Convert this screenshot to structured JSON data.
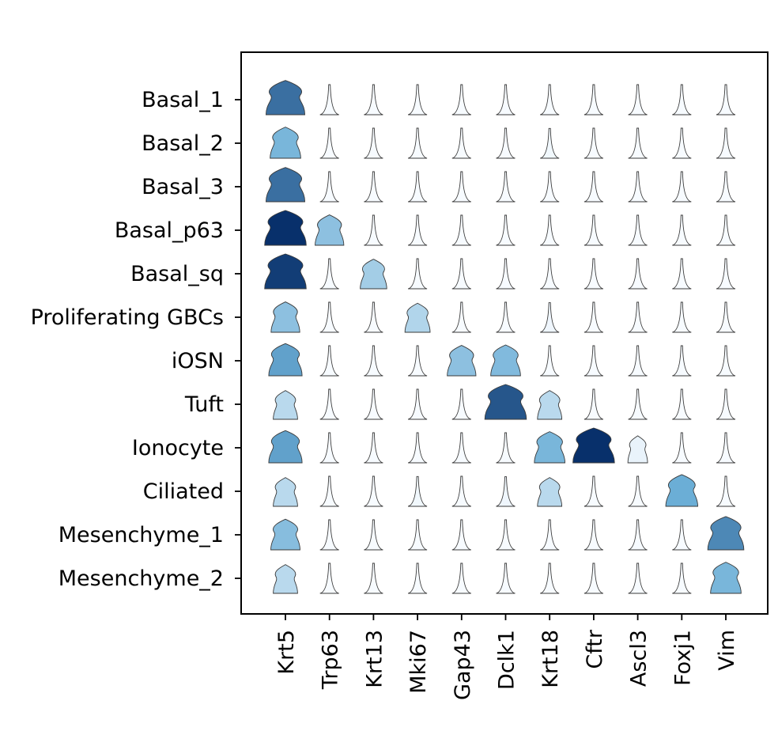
{
  "chart_data": {
    "type": "violin",
    "title": "",
    "xlabel": "",
    "ylabel": "",
    "genes": [
      "Krt5",
      "Trp63",
      "Krt13",
      "Mki67",
      "Gap43",
      "Dclk1",
      "Krt18",
      "Cftr",
      "Ascl3",
      "Foxj1",
      "Vim"
    ],
    "cell_types": [
      "Basal_1",
      "Basal_2",
      "Basal_3",
      "Basal_p63",
      "Basal_sq",
      "Proliferating GBCs",
      "iOSN",
      "Tuft",
      "Ionocyte",
      "Ciliated",
      "Mesenchyme_1",
      "Mesenchyme_2"
    ],
    "color_scale": {
      "low": "#f7fbff",
      "mid": "#6baed6",
      "high": "#08306b"
    },
    "mean_expression_scaled": [
      [
        0.75,
        0.0,
        0.0,
        0.0,
        0.0,
        0.0,
        0.0,
        0.0,
        0.0,
        0.0,
        0.0
      ],
      [
        0.45,
        0.0,
        0.0,
        0.0,
        0.0,
        0.0,
        0.02,
        0.0,
        0.0,
        0.0,
        0.0
      ],
      [
        0.75,
        0.0,
        0.0,
        0.0,
        0.0,
        0.0,
        0.0,
        0.0,
        0.0,
        0.0,
        0.0
      ],
      [
        1.0,
        0.38,
        0.0,
        0.0,
        0.0,
        0.0,
        0.0,
        0.0,
        0.0,
        0.0,
        0.0
      ],
      [
        0.95,
        0.0,
        0.3,
        0.0,
        0.0,
        0.0,
        0.0,
        0.0,
        0.0,
        0.0,
        0.0
      ],
      [
        0.38,
        0.0,
        0.0,
        0.25,
        0.0,
        0.0,
        0.03,
        0.0,
        0.0,
        0.0,
        0.0
      ],
      [
        0.55,
        0.0,
        0.0,
        0.0,
        0.38,
        0.42,
        0.0,
        0.0,
        0.0,
        0.0,
        0.0
      ],
      [
        0.22,
        0.0,
        0.0,
        0.0,
        0.0,
        0.85,
        0.22,
        0.0,
        0.0,
        0.0,
        0.0
      ],
      [
        0.55,
        0.0,
        0.0,
        0.0,
        0.0,
        0.0,
        0.45,
        1.0,
        0.05,
        0.0,
        0.0
      ],
      [
        0.22,
        0.0,
        0.0,
        0.02,
        0.0,
        0.03,
        0.22,
        0.0,
        0.0,
        0.5,
        0.0
      ],
      [
        0.4,
        0.0,
        0.0,
        0.0,
        0.0,
        0.0,
        0.0,
        0.0,
        0.0,
        0.0,
        0.65
      ],
      [
        0.22,
        0.0,
        0.0,
        0.0,
        0.0,
        0.0,
        0.0,
        0.0,
        0.0,
        0.0,
        0.45
      ]
    ],
    "grid": false,
    "legend": "none"
  }
}
